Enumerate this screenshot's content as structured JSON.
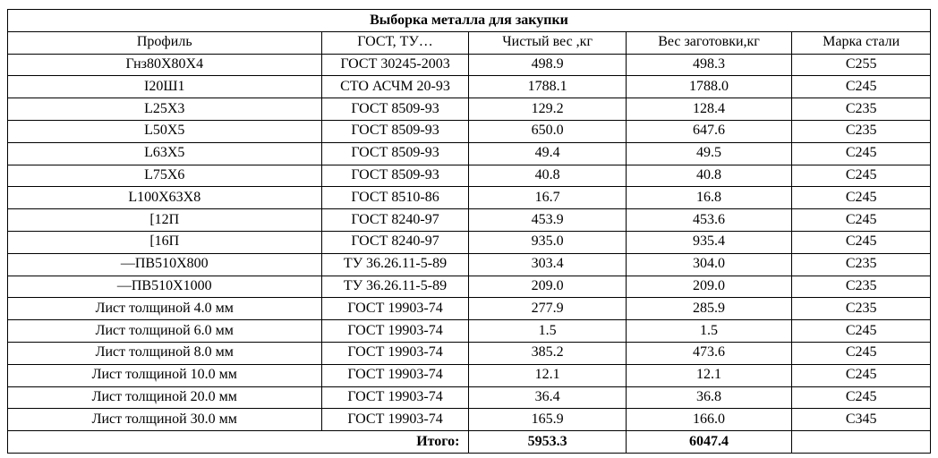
{
  "table": {
    "title": "Выборка металла для закупки",
    "columns": [
      "Профиль",
      "ГОСТ, ТУ…",
      "Чистый вес ,кг",
      "Вес заготовки,кг",
      "Марка стали"
    ],
    "rows": [
      [
        "Гнз80Х80Х4",
        "ГОСТ 30245-2003",
        "498.9",
        "498.3",
        "С255"
      ],
      [
        "I20Ш1",
        "СТО АСЧМ 20-93",
        "1788.1",
        "1788.0",
        "С245"
      ],
      [
        "L25X3",
        "ГОСТ 8509-93",
        "129.2",
        "128.4",
        "С235"
      ],
      [
        "L50X5",
        "ГОСТ 8509-93",
        "650.0",
        "647.6",
        "С235"
      ],
      [
        "L63X5",
        "ГОСТ 8509-93",
        "49.4",
        "49.5",
        "С245"
      ],
      [
        "L75X6",
        "ГОСТ 8509-93",
        "40.8",
        "40.8",
        "С245"
      ],
      [
        "L100X63X8",
        "ГОСТ 8510-86",
        "16.7",
        "16.8",
        "С245"
      ],
      [
        "[12П",
        "ГОСТ 8240-97",
        "453.9",
        "453.6",
        "С245"
      ],
      [
        "[16П",
        "ГОСТ 8240-97",
        "935.0",
        "935.4",
        "С245"
      ],
      [
        "—ПВ510Х800",
        "ТУ 36.26.11-5-89",
        "303.4",
        "304.0",
        "С235"
      ],
      [
        "—ПВ510Х1000",
        "ТУ 36.26.11-5-89",
        "209.0",
        "209.0",
        "С235"
      ],
      [
        "Лист толщиной 4.0 мм",
        "ГОСТ 19903-74",
        "277.9",
        "285.9",
        "С235"
      ],
      [
        "Лист толщиной 6.0 мм",
        "ГОСТ 19903-74",
        "1.5",
        "1.5",
        "С245"
      ],
      [
        "Лист толщиной 8.0 мм",
        "ГОСТ 19903-74",
        "385.2",
        "473.6",
        "С245"
      ],
      [
        "Лист толщиной 10.0 мм",
        "ГОСТ 19903-74",
        "12.1",
        "12.1",
        "С245"
      ],
      [
        "Лист толщиной 20.0 мм",
        "ГОСТ 19903-74",
        "36.4",
        "36.8",
        "С245"
      ],
      [
        "Лист толщиной 30.0 мм",
        "ГОСТ 19903-74",
        "165.9",
        "166.0",
        "С345"
      ]
    ],
    "totals": {
      "label": "Итого:",
      "net": "5953.3",
      "blank": "6047.4"
    },
    "colors": {
      "border": "#000000",
      "background": "#ffffff",
      "text": "#000000"
    },
    "font": {
      "family": "Times New Roman",
      "size_pt": 12
    },
    "column_widths_pct": [
      34,
      16,
      17,
      18,
      15
    ]
  }
}
